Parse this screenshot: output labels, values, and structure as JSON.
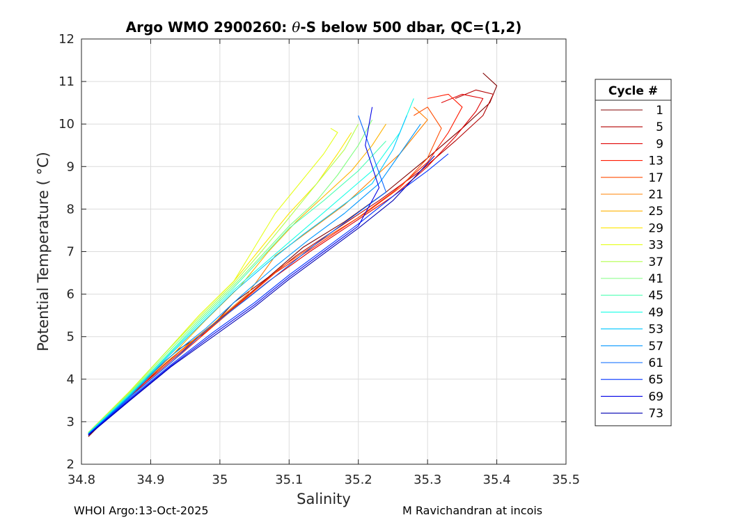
{
  "chart_data": {
    "type": "line",
    "title_prefix": "Argo WMO 2900260: ",
    "title_theta": "θ",
    "title_suffix": "-S below 500 dbar,  QC=(1,2)",
    "xlabel": "Salinity",
    "ylabel": "Potential Temperature ( °C)",
    "xlim": [
      34.8,
      35.5
    ],
    "ylim": [
      2,
      12
    ],
    "xticks": [
      34.8,
      34.9,
      35.0,
      35.1,
      35.2,
      35.3,
      35.4,
      35.5
    ],
    "xtick_labels": [
      "34.8",
      "34.9",
      "35",
      "35.1",
      "35.2",
      "35.3",
      "35.4",
      "35.5"
    ],
    "yticks": [
      2,
      3,
      4,
      5,
      6,
      7,
      8,
      9,
      10,
      11,
      12
    ],
    "ytick_labels": [
      "2",
      "3",
      "4",
      "5",
      "6",
      "7",
      "8",
      "9",
      "10",
      "11",
      "12"
    ],
    "grid": true,
    "legend_title": "Cycle #",
    "legend_position": "outside-right",
    "legend": [
      {
        "name": "1",
        "color": "#800000"
      },
      {
        "name": "5",
        "color": "#b30000"
      },
      {
        "name": "9",
        "color": "#e00000"
      },
      {
        "name": "13",
        "color": "#ff1a00"
      },
      {
        "name": "17",
        "color": "#ff4d00"
      },
      {
        "name": "21",
        "color": "#ff8000"
      },
      {
        "name": "25",
        "color": "#ffb300"
      },
      {
        "name": "29",
        "color": "#ffe600"
      },
      {
        "name": "33",
        "color": "#e6ff1a"
      },
      {
        "name": "37",
        "color": "#b3ff4d"
      },
      {
        "name": "41",
        "color": "#80ff80"
      },
      {
        "name": "45",
        "color": "#4dffb3"
      },
      {
        "name": "49",
        "color": "#1affe6"
      },
      {
        "name": "53",
        "color": "#00c8ff"
      },
      {
        "name": "57",
        "color": "#0096ff"
      },
      {
        "name": "61",
        "color": "#0064ff"
      },
      {
        "name": "65",
        "color": "#0032ff"
      },
      {
        "name": "69",
        "color": "#0000e6"
      },
      {
        "name": "73",
        "color": "#0000b3"
      }
    ],
    "series": [
      {
        "name": "1",
        "color": "#800000",
        "x": [
          34.81,
          34.85,
          34.9,
          34.94,
          34.98,
          35.02,
          35.07,
          35.12,
          35.18,
          35.24,
          35.3,
          35.35,
          35.39,
          35.4,
          35.38
        ],
        "y": [
          2.65,
          3.3,
          4.1,
          4.7,
          5.1,
          5.8,
          6.4,
          7.1,
          7.7,
          8.4,
          9.2,
          9.9,
          10.5,
          10.9,
          11.2
        ]
      },
      {
        "name": "5",
        "color": "#b30000",
        "x": [
          34.81,
          34.86,
          34.91,
          34.96,
          35.01,
          35.06,
          35.11,
          35.17,
          35.23,
          35.29,
          35.34,
          35.38,
          35.395,
          35.37,
          35.34
        ],
        "y": [
          2.7,
          3.45,
          4.2,
          4.9,
          5.55,
          6.25,
          6.9,
          7.55,
          8.2,
          8.9,
          9.6,
          10.2,
          10.7,
          10.8,
          10.6
        ]
      },
      {
        "name": "9",
        "color": "#e00000",
        "x": [
          34.81,
          34.86,
          34.92,
          34.97,
          35.02,
          35.07,
          35.13,
          35.19,
          35.25,
          35.3,
          35.34,
          35.37,
          35.38,
          35.35,
          35.32
        ],
        "y": [
          2.72,
          3.5,
          4.3,
          5.0,
          5.65,
          6.3,
          7.0,
          7.65,
          8.3,
          9.0,
          9.7,
          10.3,
          10.6,
          10.7,
          10.5
        ]
      },
      {
        "name": "13",
        "color": "#ff1a00",
        "x": [
          34.81,
          34.87,
          34.93,
          34.98,
          35.03,
          35.08,
          35.14,
          35.2,
          35.25,
          35.3,
          35.33,
          35.35,
          35.33,
          35.3
        ],
        "y": [
          2.72,
          3.6,
          4.4,
          5.1,
          5.8,
          6.5,
          7.15,
          7.8,
          8.4,
          9.1,
          9.8,
          10.4,
          10.7,
          10.6
        ]
      },
      {
        "name": "17",
        "color": "#ff4d00",
        "x": [
          34.81,
          34.87,
          34.93,
          34.99,
          35.04,
          35.09,
          35.15,
          35.21,
          35.26,
          35.3,
          35.32,
          35.3,
          35.28
        ],
        "y": [
          2.72,
          3.65,
          4.5,
          5.25,
          5.95,
          6.65,
          7.3,
          7.9,
          8.5,
          9.2,
          9.9,
          10.4,
          10.2
        ]
      },
      {
        "name": "21",
        "color": "#ff8000",
        "x": [
          34.81,
          34.87,
          34.93,
          34.99,
          35.04,
          35.08,
          35.13,
          35.18,
          35.22,
          35.26,
          35.3,
          35.28
        ],
        "y": [
          2.73,
          3.65,
          4.5,
          5.3,
          6.0,
          6.9,
          7.5,
          8.1,
          8.7,
          9.3,
          10.1,
          10.4
        ]
      },
      {
        "name": "25",
        "color": "#ffb300",
        "x": [
          34.81,
          34.87,
          34.93,
          34.98,
          35.03,
          35.07,
          35.11,
          35.15,
          35.19,
          35.22,
          35.24
        ],
        "y": [
          2.74,
          3.7,
          4.55,
          5.4,
          6.2,
          7.0,
          7.7,
          8.3,
          8.9,
          9.5,
          10.0
        ]
      },
      {
        "name": "29",
        "color": "#ffe600",
        "x": [
          34.81,
          34.87,
          34.92,
          34.97,
          35.02,
          35.06,
          35.1,
          35.14,
          35.17,
          35.19
        ],
        "y": [
          2.74,
          3.72,
          4.6,
          5.5,
          6.3,
          7.1,
          7.9,
          8.6,
          9.3,
          9.8
        ]
      },
      {
        "name": "33",
        "color": "#e6ff1a",
        "x": [
          34.81,
          34.87,
          34.92,
          34.97,
          35.02,
          35.05,
          35.08,
          35.12,
          35.15,
          35.17,
          35.16
        ],
        "y": [
          2.75,
          3.72,
          4.6,
          5.5,
          6.3,
          7.1,
          7.9,
          8.7,
          9.3,
          9.8,
          9.9
        ]
      },
      {
        "name": "37",
        "color": "#b3ff4d",
        "x": [
          34.81,
          34.87,
          34.92,
          34.97,
          35.02,
          35.06,
          35.1,
          35.14,
          35.18,
          35.2
        ],
        "y": [
          2.75,
          3.7,
          4.6,
          5.45,
          6.25,
          7.0,
          7.8,
          8.6,
          9.4,
          10.0
        ]
      },
      {
        "name": "41",
        "color": "#80ff80",
        "x": [
          34.81,
          34.87,
          34.92,
          34.97,
          35.02,
          35.06,
          35.1,
          35.14,
          35.17,
          35.2,
          35.22
        ],
        "y": [
          2.74,
          3.68,
          4.55,
          5.4,
          6.2,
          6.9,
          7.6,
          8.2,
          8.8,
          9.5,
          10.1
        ]
      },
      {
        "name": "45",
        "color": "#4dffb3",
        "x": [
          34.81,
          34.87,
          34.92,
          34.97,
          35.02,
          35.06,
          35.1,
          35.15,
          35.2,
          35.24
        ],
        "y": [
          2.73,
          3.66,
          4.5,
          5.35,
          6.15,
          6.85,
          7.55,
          8.2,
          8.9,
          9.6
        ]
      },
      {
        "name": "49",
        "color": "#1affe6",
        "x": [
          34.81,
          34.87,
          34.92,
          34.97,
          35.02,
          35.07,
          35.12,
          35.17,
          35.22,
          35.26,
          35.28
        ],
        "y": [
          2.73,
          3.64,
          4.48,
          5.3,
          6.1,
          6.8,
          7.5,
          8.2,
          8.9,
          9.8,
          10.6
        ]
      },
      {
        "name": "53",
        "color": "#00c8ff",
        "x": [
          34.81,
          34.87,
          34.92,
          34.97,
          35.02,
          35.07,
          35.12,
          35.17,
          35.22,
          35.25,
          35.27
        ],
        "y": [
          2.72,
          3.62,
          4.45,
          5.25,
          6.05,
          6.75,
          7.4,
          8.0,
          8.6,
          9.4,
          10.2
        ]
      },
      {
        "name": "57",
        "color": "#0096ff",
        "x": [
          34.81,
          34.87,
          34.92,
          34.98,
          35.03,
          35.08,
          35.13,
          35.18,
          35.23,
          35.26,
          35.29
        ],
        "y": [
          2.71,
          3.6,
          4.42,
          5.2,
          5.95,
          6.65,
          7.3,
          7.9,
          8.6,
          9.3,
          10.0
        ]
      },
      {
        "name": "61",
        "color": "#0064ff",
        "x": [
          34.81,
          34.87,
          34.93,
          34.98,
          35.04,
          35.09,
          35.14,
          35.19,
          35.24,
          35.22,
          35.2
        ],
        "y": [
          2.7,
          3.58,
          4.4,
          5.15,
          5.9,
          6.55,
          7.2,
          7.8,
          8.4,
          9.3,
          10.2
        ]
      },
      {
        "name": "65",
        "color": "#0032ff",
        "x": [
          34.81,
          34.87,
          34.93,
          34.99,
          35.05,
          35.1,
          35.15,
          35.2,
          35.25,
          35.3,
          35.33
        ],
        "y": [
          2.7,
          3.55,
          4.35,
          5.1,
          5.8,
          6.45,
          7.05,
          7.65,
          8.3,
          8.9,
          9.3
        ]
      },
      {
        "name": "69",
        "color": "#0000e6",
        "x": [
          34.81,
          34.87,
          34.93,
          34.99,
          35.05,
          35.1,
          35.15,
          35.2,
          35.23,
          35.21,
          35.22
        ],
        "y": [
          2.69,
          3.52,
          4.32,
          5.05,
          5.75,
          6.4,
          7.0,
          7.6,
          8.5,
          9.5,
          10.4
        ]
      },
      {
        "name": "73",
        "color": "#0000b3",
        "x": [
          34.81,
          34.87,
          34.93,
          34.99,
          35.05,
          35.1,
          35.15,
          35.2,
          35.25,
          35.29,
          35.31
        ],
        "y": [
          2.68,
          3.5,
          4.3,
          5.0,
          5.7,
          6.35,
          6.95,
          7.55,
          8.2,
          8.9,
          9.25
        ]
      }
    ]
  },
  "footer": {
    "left": "WHOI Argo:13-Oct-2025",
    "right": "M Ravichandran at incois"
  }
}
